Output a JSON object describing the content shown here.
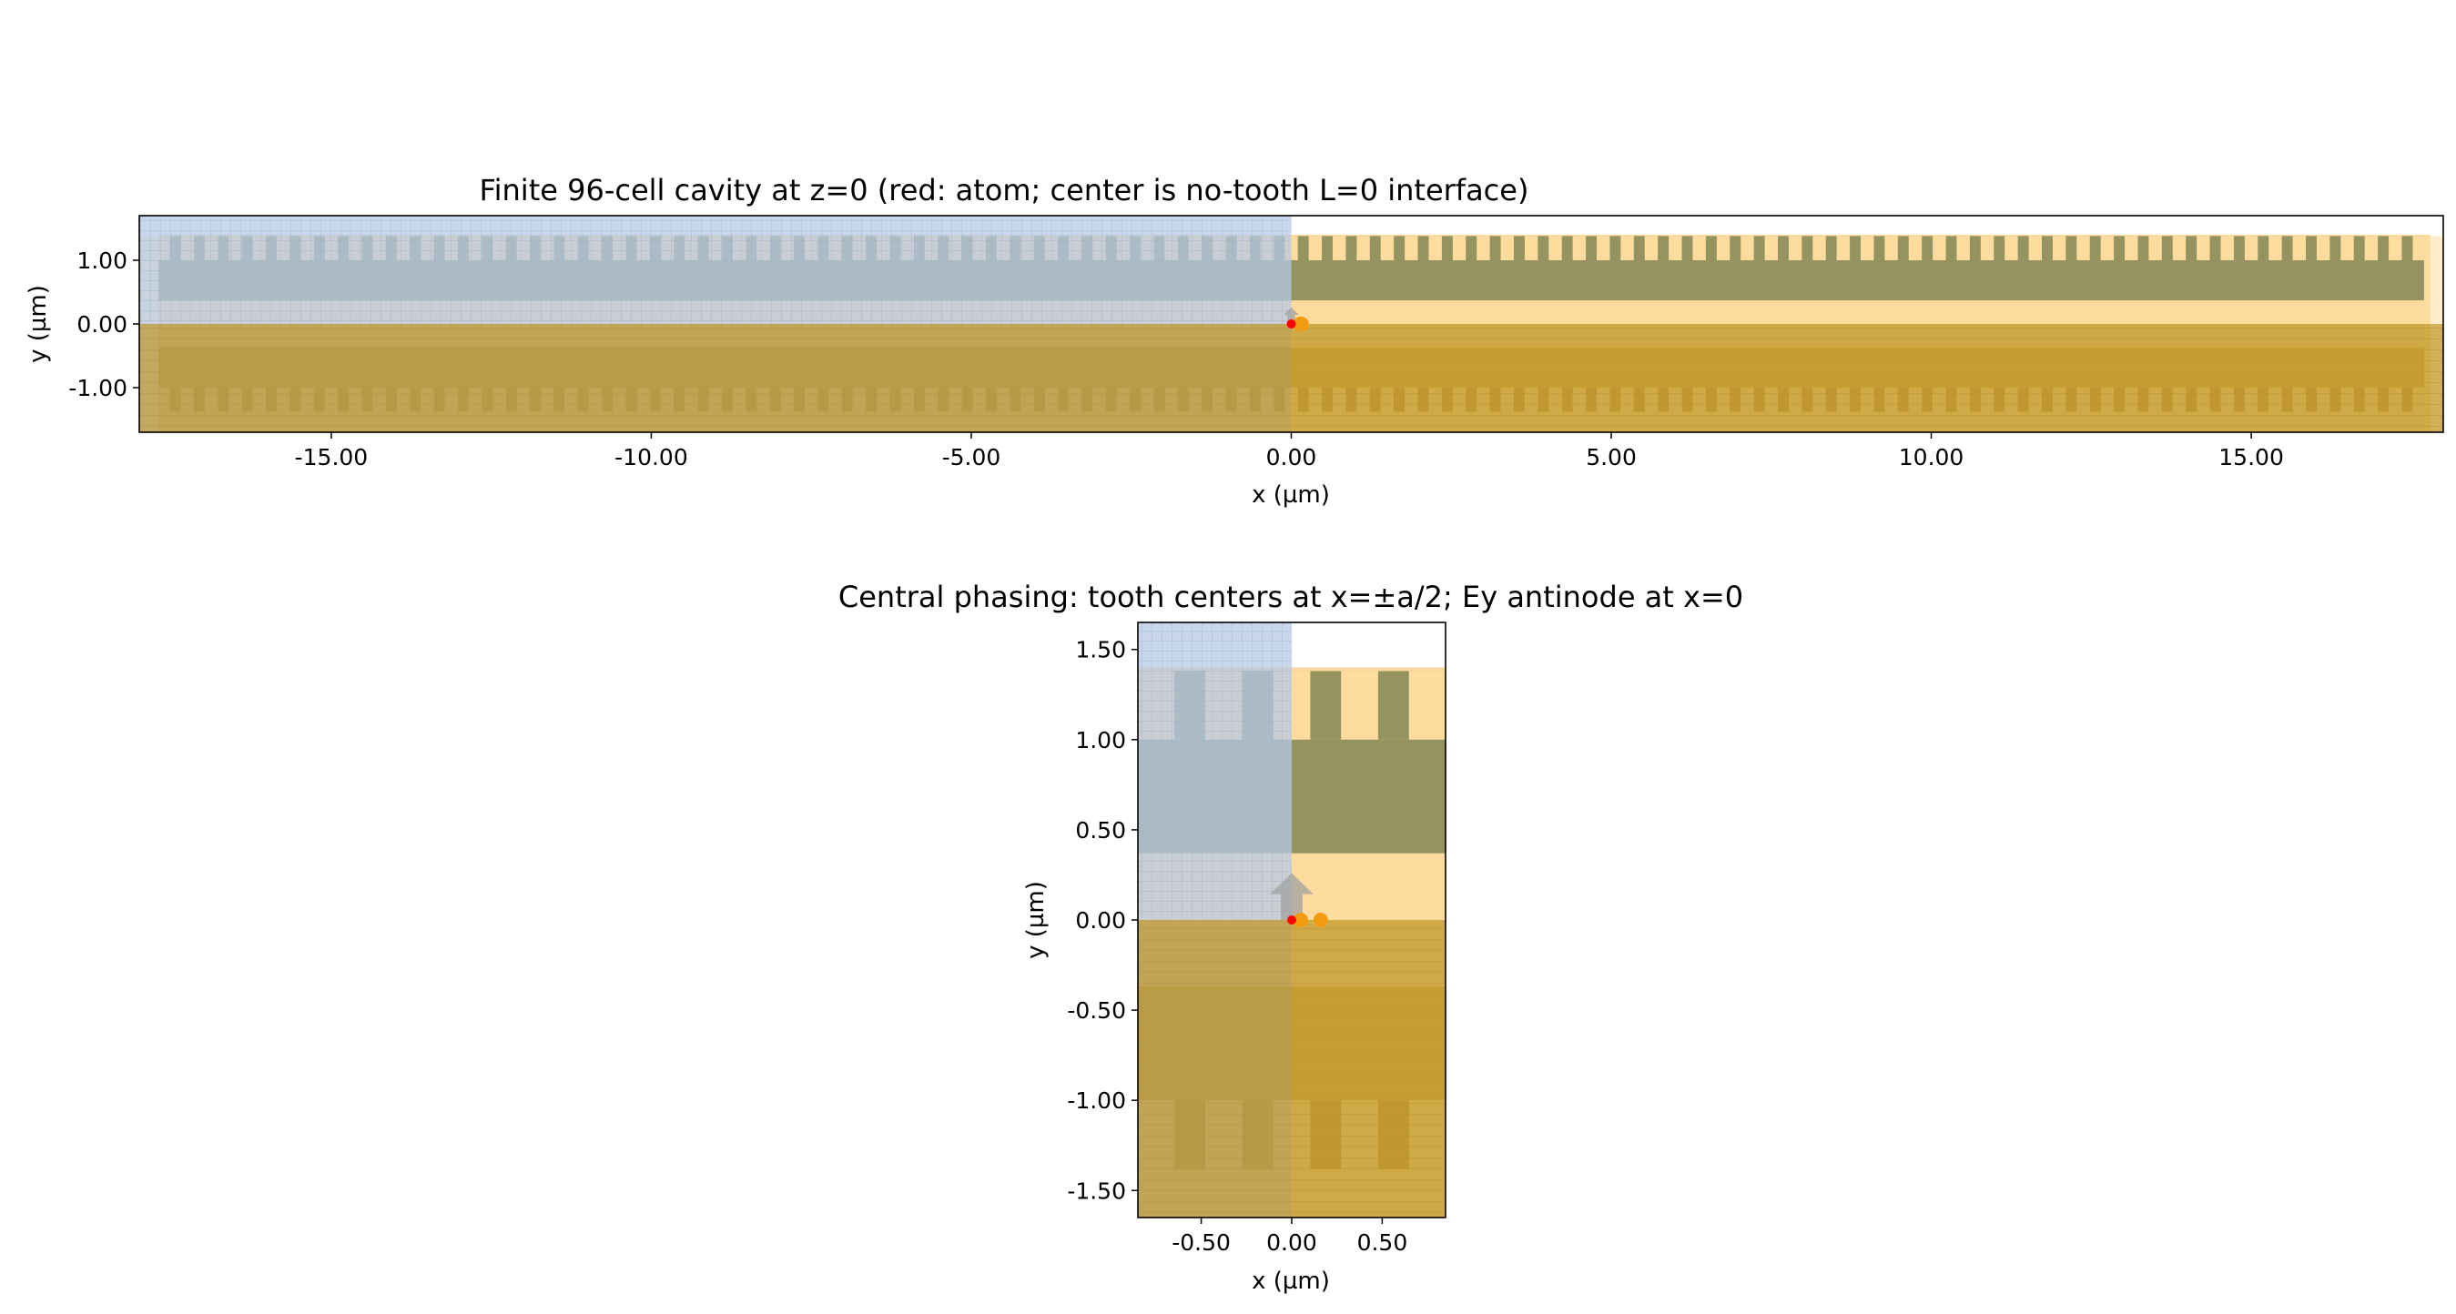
{
  "chart_data": [
    {
      "type": "geometry",
      "title": "Finite 96-cell cavity at z=0 (red: atom; center is no-tooth L=0 interface)",
      "xlabel": "x (µm)",
      "ylabel": "y (µm)",
      "xlim": [
        -18.0,
        18.0
      ],
      "ylim": [
        -1.7,
        1.7
      ],
      "xticks": [
        -15,
        -10,
        -5,
        0,
        5,
        10,
        15
      ],
      "xtick_labels": [
        "-15.00",
        "-10.00",
        "-5.00",
        "0.00",
        "5.00",
        "10.00",
        "15.00"
      ],
      "yticks": [
        -1,
        0,
        1
      ],
      "ytick_labels": [
        "-1.00",
        "0.00",
        "1.00"
      ],
      "cells": 96,
      "lattice_constant": 0.375,
      "tooth_width": 0.17,
      "beam_y": [
        0.37,
        1.0
      ],
      "teeth_y": [
        1.0,
        1.38
      ],
      "waveguide_y": [
        -1.7,
        1.4
      ],
      "atom": {
        "x": 0.0,
        "y": 0.0
      },
      "sources_x": [
        0.0,
        0.16
      ],
      "grid_on": false,
      "colors": {
        "structure": "#f5a623",
        "beam": "#8f8f5e",
        "half_space_top": "#b6c9e6",
        "half_space_bottom": "#c9a23a",
        "atom": "#ff0000",
        "source": "#f39c12",
        "monitor": "#a0a0a0"
      }
    },
    {
      "type": "geometry",
      "title": "Central phasing: tooth centers at x=±a/2; Ey antinode at x=0",
      "xlabel": "x (µm)",
      "ylabel": "y (µm)",
      "xlim": [
        -0.85,
        0.85
      ],
      "ylim": [
        -1.65,
        1.65
      ],
      "xticks": [
        -0.5,
        0,
        0.5
      ],
      "xtick_labels": [
        "-0.50",
        "0.00",
        "0.50"
      ],
      "yticks": [
        -1.5,
        -1,
        -0.5,
        0,
        0.5,
        1,
        1.5
      ],
      "ytick_labels": [
        "-1.50",
        "-1.00",
        "-0.50",
        "0.00",
        "0.50",
        "1.00",
        "1.50"
      ],
      "lattice_constant": 0.375,
      "tooth_width": 0.17,
      "beam_y": [
        0.37,
        1.0
      ],
      "teeth_y": [
        1.0,
        1.38
      ],
      "waveguide_y": [
        -1.65,
        1.4
      ],
      "atom": {
        "x": 0.0,
        "y": 0.0
      },
      "sources_x": [
        0.0,
        0.16
      ],
      "grid_on": false,
      "colors": {
        "structure": "#f5a623",
        "beam": "#8f8f5e",
        "half_space_top": "#b6c9e6",
        "half_space_bottom": "#c9a23a",
        "atom": "#ff0000",
        "source": "#f39c12",
        "monitor": "#a0a0a0"
      }
    }
  ]
}
